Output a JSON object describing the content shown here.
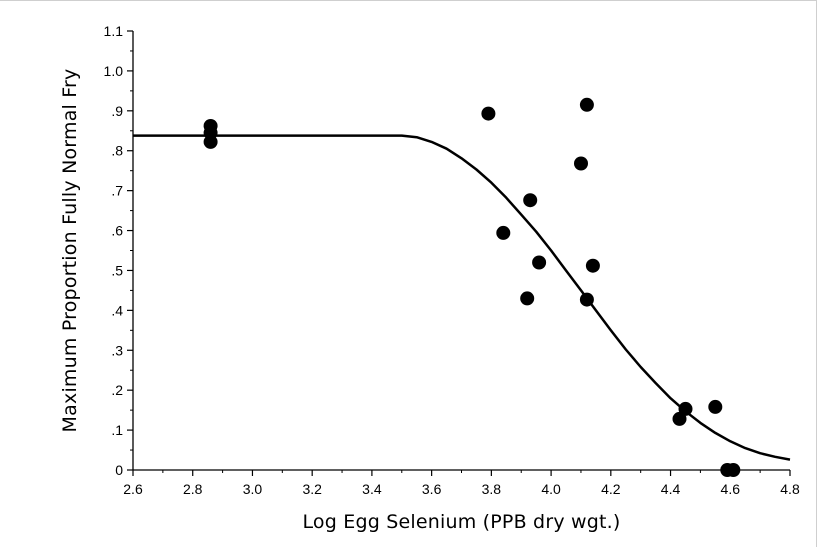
{
  "chart_data": {
    "type": "scatter",
    "title": "",
    "xlabel": "Log Egg Selenium (PPB dry wgt.)",
    "ylabel": "Maximum Proportion Fully Normal Fry",
    "xlim": [
      2.6,
      4.8
    ],
    "ylim": [
      0,
      1.1
    ],
    "x_ticks": [
      2.6,
      2.8,
      3.0,
      3.2,
      3.4,
      3.6,
      3.8,
      4.0,
      4.2,
      4.4,
      4.6,
      4.8
    ],
    "x_tick_labels": [
      "2.6",
      "2.8",
      "3.0",
      "3.2",
      "3.4",
      "3.6",
      "3.8",
      "4.0",
      "4.2",
      "4.4",
      "4.6",
      "4.8"
    ],
    "y_ticks": [
      0,
      0.1,
      0.2,
      0.3,
      0.4,
      0.5,
      0.6,
      0.7,
      0.8,
      0.9,
      1.0,
      1.1
    ],
    "y_tick_labels": [
      "0",
      ".1",
      ".2",
      ".3",
      ".4",
      ".5",
      ".6",
      ".7",
      ".8",
      ".9",
      "1.0",
      "1.1"
    ],
    "grid": false,
    "legend": "none",
    "colors": {
      "points": "#000000",
      "curve": "#000000",
      "axes": "#000000"
    },
    "series": [
      {
        "type": "scatter",
        "x": [
          2.86,
          2.86,
          2.86,
          3.79,
          3.84,
          3.92,
          3.93,
          3.96,
          4.1,
          4.12,
          4.12,
          4.14,
          4.43,
          4.45,
          4.55,
          4.59,
          4.61
        ],
        "y": [
          0.862,
          0.845,
          0.822,
          0.893,
          0.594,
          0.43,
          0.676,
          0.52,
          0.768,
          0.427,
          0.915,
          0.512,
          0.128,
          0.153,
          0.158,
          0.0,
          0.0
        ]
      },
      {
        "type": "line",
        "x": [
          2.6,
          3.5,
          3.55,
          3.6,
          3.65,
          3.7,
          3.75,
          3.8,
          3.85,
          3.9,
          3.95,
          4.0,
          4.05,
          4.1,
          4.15,
          4.2,
          4.25,
          4.3,
          4.35,
          4.4,
          4.45,
          4.5,
          4.55,
          4.6,
          4.65,
          4.7,
          4.75,
          4.8
        ],
        "y": [
          0.838,
          0.838,
          0.834,
          0.822,
          0.805,
          0.781,
          0.753,
          0.72,
          0.682,
          0.64,
          0.597,
          0.55,
          0.5,
          0.45,
          0.4,
          0.35,
          0.302,
          0.258,
          0.218,
          0.18,
          0.147,
          0.118,
          0.093,
          0.072,
          0.055,
          0.042,
          0.033,
          0.026
        ]
      }
    ]
  }
}
